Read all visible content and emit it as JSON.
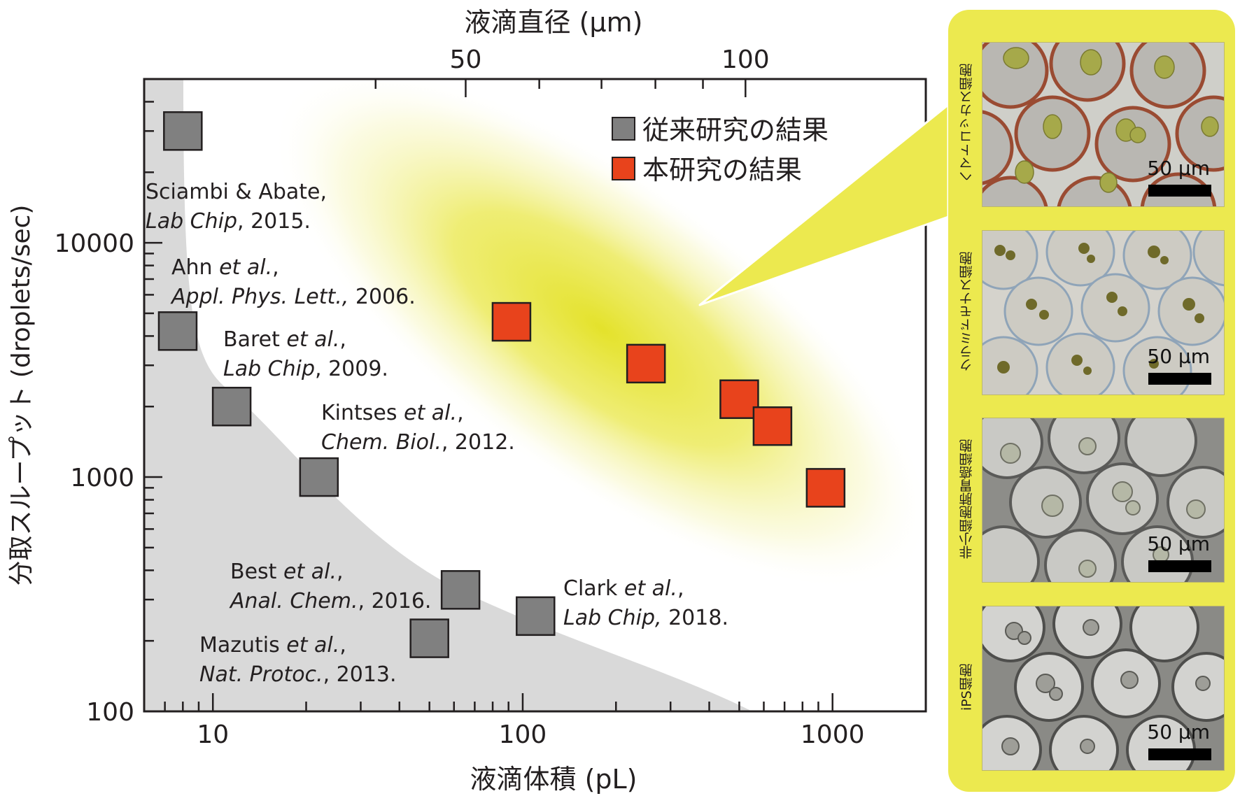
{
  "chart_data": {
    "type": "scatter",
    "xlabel": "液滴体積 (pL)",
    "x2label": "液滴直径 (μm)",
    "ylabel": "分取スループット (droplets/sec)",
    "xscale": "log",
    "yscale": "log",
    "xlim": [
      6,
      2000
    ],
    "ylim": [
      100,
      50000
    ],
    "x_ticks": [
      "10",
      "100",
      "1000"
    ],
    "x2_ticks": [
      "50",
      "100"
    ],
    "y_ticks": [
      "100",
      "1000",
      "10000"
    ],
    "grid": false,
    "legend_position": "top-right",
    "series": [
      {
        "name": "従来研究の結果",
        "color": "#808080",
        "points": [
          {
            "x": 8,
            "y": 30000,
            "ref_author": "Sciambi & Abate,",
            "ref_journal": "Lab Chip",
            "ref_tail": ", 2015."
          },
          {
            "x": 7.7,
            "y": 4200,
            "ref_author": "Ahn et al.,",
            "ref_journal": "Appl. Phys. Lett.,",
            "ref_tail": " 2006."
          },
          {
            "x": 11.5,
            "y": 2000,
            "ref_author": "Baret et al.,",
            "ref_journal": "Lab Chip",
            "ref_tail": ", 2009."
          },
          {
            "x": 22,
            "y": 1000,
            "ref_author": "Kintses et al.,",
            "ref_journal": "Chem. Biol.",
            "ref_tail": ", 2012."
          },
          {
            "x": 63,
            "y": 330,
            "ref_author": "Best et al.,",
            "ref_journal": "Anal. Chem.",
            "ref_tail": ", 2016."
          },
          {
            "x": 50,
            "y": 205,
            "ref_author": "Mazutis et al.,",
            "ref_journal": "Nat. Protoc.",
            "ref_tail": ", 2013."
          },
          {
            "x": 110,
            "y": 255,
            "ref_author": "Clark et al.,",
            "ref_journal": "Lab Chip,",
            "ref_tail": " 2018."
          }
        ]
      },
      {
        "name": "本研究の結果",
        "color": "#e8431c",
        "points": [
          {
            "x": 92,
            "y": 4600
          },
          {
            "x": 250,
            "y": 3050
          },
          {
            "x": 500,
            "y": 2150
          },
          {
            "x": 640,
            "y": 1650
          },
          {
            "x": 950,
            "y": 900
          }
        ]
      }
    ]
  },
  "panel": {
    "accent_color": "#ece94f",
    "images": [
      {
        "label": "ヘマトコッカス細胞",
        "scale_text": "50 μm"
      },
      {
        "label": "クラミドモナス細胞",
        "scale_text": "50 μm"
      },
      {
        "label": "非小細胞肺胃癌細胞",
        "scale_text": "50 μm"
      },
      {
        "label": "iPS細胞",
        "scale_text": "50 μm"
      }
    ]
  }
}
